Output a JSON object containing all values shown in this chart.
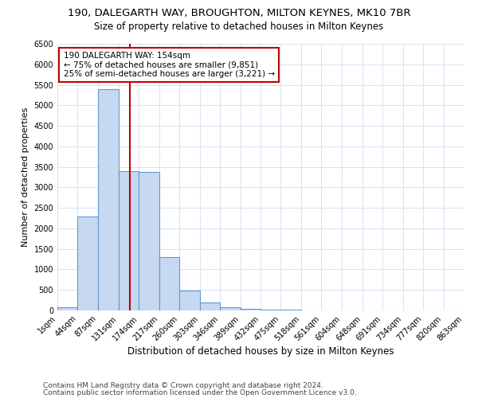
{
  "title": "190, DALEGARTH WAY, BROUGHTON, MILTON KEYNES, MK10 7BR",
  "subtitle": "Size of property relative to detached houses in Milton Keynes",
  "xlabel": "Distribution of detached houses by size in Milton Keynes",
  "ylabel": "Number of detached properties",
  "bin_edges": [
    1,
    44,
    87,
    131,
    174,
    217,
    260,
    303,
    346,
    389,
    432,
    475,
    518,
    561,
    604,
    648,
    691,
    734,
    777,
    820,
    863
  ],
  "bar_heights": [
    70,
    2280,
    5400,
    3400,
    3380,
    1300,
    480,
    185,
    80,
    45,
    20,
    10,
    5,
    3,
    2,
    1,
    1,
    0,
    0,
    0
  ],
  "bar_color": "#c6d9f0",
  "bar_edgecolor": "#5b9bd5",
  "bar_linewidth": 0.8,
  "vline_x": 154,
  "vline_color": "#c00000",
  "annotation_text": "190 DALEGARTH WAY: 154sqm\n← 75% of detached houses are smaller (9,851)\n25% of semi-detached houses are larger (3,221) →",
  "annotation_box_color": "#ffffff",
  "annotation_box_edgecolor": "#c00000",
  "ylim": [
    0,
    6500
  ],
  "yticks": [
    0,
    500,
    1000,
    1500,
    2000,
    2500,
    3000,
    3500,
    4000,
    4500,
    5000,
    5500,
    6000,
    6500
  ],
  "tick_labels": [
    "1sqm",
    "44sqm",
    "87sqm",
    "131sqm",
    "174sqm",
    "217sqm",
    "260sqm",
    "303sqm",
    "346sqm",
    "389sqm",
    "432sqm",
    "475sqm",
    "518sqm",
    "561sqm",
    "604sqm",
    "648sqm",
    "691sqm",
    "734sqm",
    "777sqm",
    "820sqm",
    "863sqm"
  ],
  "grid_color": "#d9e1f2",
  "background_color": "#ffffff",
  "footer_line1": "Contains HM Land Registry data © Crown copyright and database right 2024.",
  "footer_line2": "Contains public sector information licensed under the Open Government Licence v3.0.",
  "title_fontsize": 9.5,
  "subtitle_fontsize": 8.5,
  "xlabel_fontsize": 8.5,
  "ylabel_fontsize": 8,
  "tick_fontsize": 7,
  "annotation_fontsize": 7.5,
  "footer_fontsize": 6.5
}
